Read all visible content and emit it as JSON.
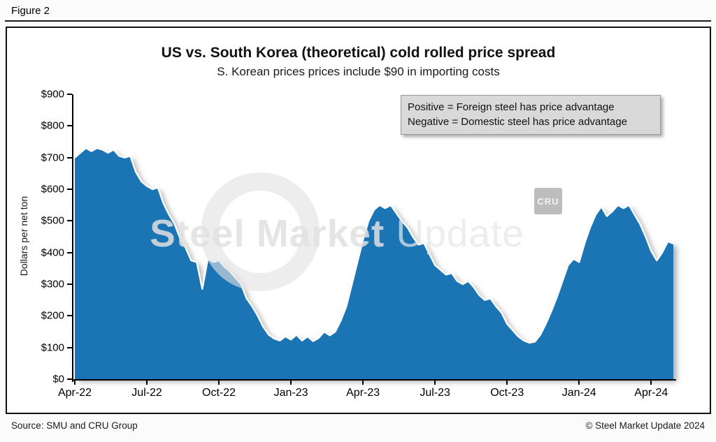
{
  "figure_label": "Figure 2",
  "title": "US vs. South Korea (theoretical) cold rolled price spread",
  "subtitle": "S. Korean prices prices include $90 in importing costs",
  "annotation": {
    "line1": "Positive = Foreign steel has price advantage",
    "line2": "Negative = Domestic steel has price advantage"
  },
  "watermark": {
    "text_bold": "Steel Market",
    "text_light": "Update",
    "cru_text": "CRU"
  },
  "footer": {
    "source": "Source: SMU and CRU Group",
    "copyright": "© Steel Market Update 2024"
  },
  "colors": {
    "area_fill": "#1b74b4",
    "area_edge": "#ffffff",
    "annotation_bg": "#d9d9d9",
    "axis": "#000000"
  },
  "chart_data": {
    "type": "area",
    "title": "US vs. South Korea (theoretical) cold rolled price spread",
    "subtitle": "S. Korean prices prices include $90 in importing costs",
    "ylabel": "Dollars per net ton",
    "xlabel": "",
    "ylim": [
      0,
      900
    ],
    "y_ticks": [
      {
        "label": "$900",
        "value": 900
      },
      {
        "label": "$800",
        "value": 800
      },
      {
        "label": "$700",
        "value": 700
      },
      {
        "label": "$600",
        "value": 600
      },
      {
        "label": "$500",
        "value": 500
      },
      {
        "label": "$400",
        "value": 400
      },
      {
        "label": "$300",
        "value": 300
      },
      {
        "label": "$200",
        "value": 200
      },
      {
        "label": "$100",
        "value": 100
      },
      {
        "label": "$0",
        "value": 0
      }
    ],
    "x_total_weeks": 108,
    "x_ticks": [
      {
        "label": "Apr-22",
        "week": 0
      },
      {
        "label": "Jul-22",
        "week": 13
      },
      {
        "label": "Oct-22",
        "week": 26
      },
      {
        "label": "Jan-23",
        "week": 39
      },
      {
        "label": "Apr-23",
        "week": 52
      },
      {
        "label": "Jul-23",
        "week": 65
      },
      {
        "label": "Oct-23",
        "week": 78
      },
      {
        "label": "Jan-24",
        "week": 91
      },
      {
        "label": "Apr-24",
        "week": 104
      }
    ],
    "grid": false,
    "legend": false,
    "values": [
      700,
      715,
      730,
      720,
      730,
      725,
      715,
      725,
      705,
      700,
      705,
      655,
      625,
      610,
      600,
      605,
      555,
      520,
      490,
      445,
      415,
      375,
      370,
      285,
      380,
      370,
      375,
      355,
      340,
      320,
      300,
      255,
      230,
      200,
      165,
      140,
      128,
      122,
      135,
      125,
      140,
      122,
      135,
      120,
      130,
      150,
      138,
      150,
      185,
      230,
      300,
      370,
      440,
      500,
      535,
      550,
      540,
      550,
      525,
      500,
      480,
      450,
      425,
      430,
      395,
      360,
      345,
      330,
      335,
      310,
      300,
      310,
      290,
      265,
      250,
      255,
      230,
      210,
      175,
      155,
      135,
      122,
      115,
      118,
      140,
      175,
      215,
      260,
      310,
      360,
      380,
      370,
      430,
      480,
      520,
      545,
      515,
      530,
      550,
      540,
      550,
      520,
      490,
      450,
      405,
      375,
      400,
      435,
      428
    ]
  }
}
